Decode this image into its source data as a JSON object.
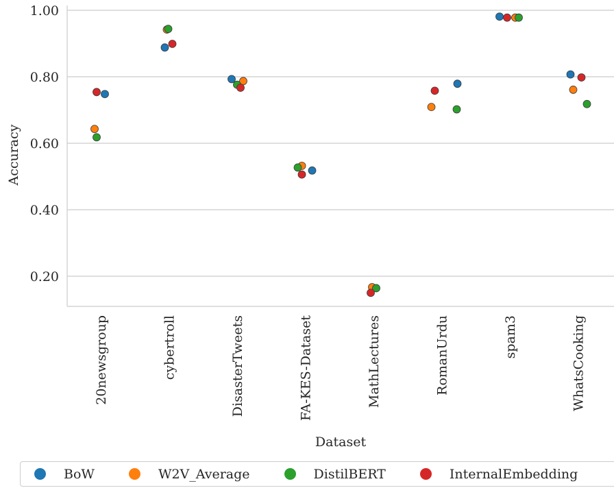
{
  "chart_data": {
    "type": "scatter",
    "xlabel": "Dataset",
    "ylabel": "Accuracy",
    "categories": [
      "20newsgroup",
      "cybertroll",
      "DisasterTweets",
      "FA-KES-Dataset",
      "MathLectures",
      "RomanUrdu",
      "spam3",
      "WhatsCooking"
    ],
    "yticks": [
      "0.20",
      "0.40",
      "0.60",
      "0.80",
      "1.00"
    ],
    "ylim": [
      0.11,
      1.03
    ],
    "grid": true,
    "legend_position": "bottom",
    "series": [
      {
        "name": "BoW",
        "color": "#1f77b4",
        "values": [
          0.748,
          0.888,
          0.793,
          0.518,
          null,
          0.779,
          0.981,
          0.807
        ]
      },
      {
        "name": "W2V_Average",
        "color": "#ff7f0e",
        "values": [
          0.643,
          0.942,
          0.787,
          0.532,
          0.167,
          0.709,
          0.978,
          0.761
        ]
      },
      {
        "name": "DistilBERT",
        "color": "#2ca02c",
        "values": [
          0.618,
          0.944,
          0.776,
          0.527,
          0.164,
          0.702,
          0.978,
          0.718
        ]
      },
      {
        "name": "InternalEmbedding",
        "color": "#d62728",
        "values": [
          0.754,
          0.899,
          0.767,
          0.506,
          0.15,
          0.758,
          0.978,
          0.798
        ]
      }
    ]
  }
}
